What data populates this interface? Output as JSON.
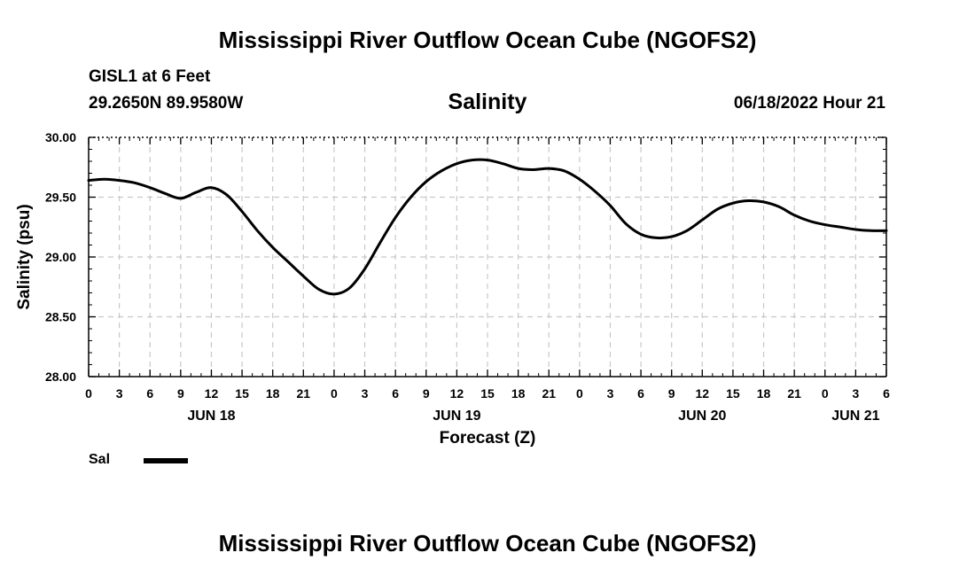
{
  "header": {
    "title": "Mississippi River Outflow Ocean Cube (NGOFS2)",
    "station": "GISL1 at 6 Feet",
    "coordinates": "29.2650N  89.9580W",
    "subtitle": "Salinity",
    "run_time": "06/18/2022 Hour 21"
  },
  "footer": {
    "title": "Mississippi River Outflow Ocean Cube (NGOFS2)"
  },
  "legend": {
    "label": "Sal",
    "color": "#000000"
  },
  "chart_data": {
    "type": "line",
    "title": "Salinity",
    "xlabel": "Forecast (Z)",
    "ylabel": "Salinity (psu)",
    "x_unit": "hours since 06/18/2022 00Z",
    "xlim": [
      0,
      78
    ],
    "ylim": [
      28.0,
      30.0
    ],
    "yticks": [
      28.0,
      28.5,
      29.0,
      29.5,
      30.0
    ],
    "ytick_labels": [
      "28.00",
      "28.50",
      "29.00",
      "29.50",
      "30.00"
    ],
    "xticks": [
      0,
      3,
      6,
      9,
      12,
      15,
      18,
      21,
      24,
      27,
      30,
      33,
      36,
      39,
      42,
      45,
      48,
      51,
      54,
      57,
      60,
      63,
      66,
      69,
      72,
      75,
      78
    ],
    "xtick_labels": [
      "0",
      "3",
      "6",
      "9",
      "12",
      "15",
      "18",
      "21",
      "0",
      "3",
      "6",
      "9",
      "12",
      "15",
      "18",
      "21",
      "0",
      "3",
      "6",
      "9",
      "12",
      "15",
      "18",
      "21",
      "0",
      "3",
      "6"
    ],
    "day_labels": [
      {
        "x": 12,
        "label": "JUN 18"
      },
      {
        "x": 36,
        "label": "JUN 19"
      },
      {
        "x": 60,
        "label": "JUN 20"
      },
      {
        "x": 75,
        "label": "JUN 21"
      }
    ],
    "grid": true,
    "series": [
      {
        "name": "Sal",
        "color": "#000000",
        "x": [
          0,
          1.5,
          3,
          4.5,
          6,
          7.5,
          9,
          10.5,
          12,
          13.5,
          15,
          16.5,
          18,
          19.5,
          21,
          22.5,
          24,
          25.5,
          27,
          28.5,
          30,
          31.5,
          33,
          34.5,
          36,
          37.5,
          39,
          40.5,
          42,
          43.5,
          45,
          46.5,
          48,
          49.5,
          51,
          52.5,
          54,
          55.5,
          57,
          58.5,
          60,
          61.5,
          63,
          64.5,
          66,
          67.5,
          69,
          70.5,
          72,
          73.5,
          75,
          76.5,
          78
        ],
        "values": [
          29.64,
          29.65,
          29.64,
          29.62,
          29.58,
          29.53,
          29.49,
          29.54,
          29.58,
          29.52,
          29.38,
          29.22,
          29.08,
          28.96,
          28.84,
          28.73,
          28.69,
          28.74,
          28.9,
          29.12,
          29.33,
          29.5,
          29.63,
          29.72,
          29.78,
          29.81,
          29.81,
          29.78,
          29.74,
          29.73,
          29.74,
          29.72,
          29.65,
          29.55,
          29.43,
          29.28,
          29.19,
          29.16,
          29.17,
          29.22,
          29.31,
          29.4,
          29.45,
          29.47,
          29.46,
          29.42,
          29.35,
          29.3,
          29.27,
          29.25,
          29.23,
          29.22,
          29.22
        ]
      }
    ]
  }
}
